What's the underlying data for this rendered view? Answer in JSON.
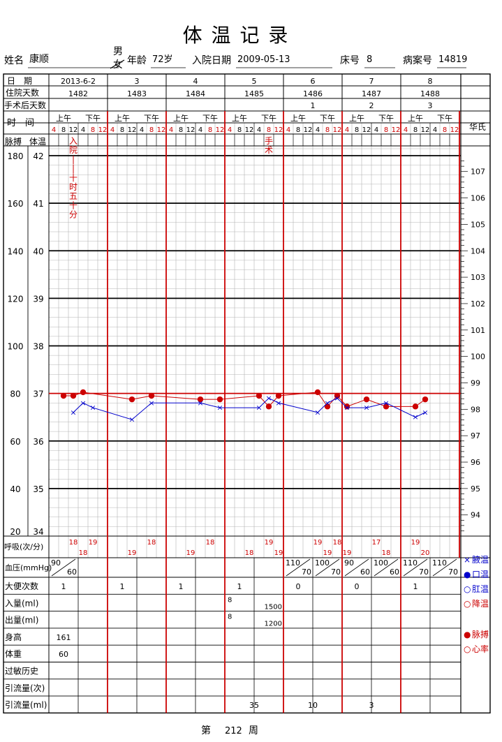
{
  "header": {
    "title": "体 温 记 录",
    "name_label": "姓名",
    "name": "康顺",
    "sex_male": "男",
    "sex_female": "女",
    "age_label": "年龄",
    "age": "72岁",
    "admit_label": "入院日期",
    "admit_date": "2009-05-13",
    "bed_label": "床号",
    "bed": "8",
    "case_label": "病案号",
    "case_no": "14819"
  },
  "labels": {
    "date": "日　期",
    "hosp_days": "住院天数",
    "post_op": "手术后天数",
    "time": "时　间",
    "am": "上午",
    "pm": "下午",
    "fahrenheit": "华氏",
    "pulse": "脉搏",
    "temp": "体温",
    "resp": "呼吸(次/分)",
    "bp": "血压(mmHg)",
    "stool": "大便次数",
    "intake": "入量(ml)",
    "output": "出量(ml)",
    "height": "身高",
    "weight": "体重",
    "allergy": "过敏历史",
    "drain_count": "引流量(次)",
    "drain_ml": "引流量(ml)",
    "footer_prefix": "第",
    "footer_week": "212",
    "footer_suffix": "周"
  },
  "legend": [
    {
      "symbol": "×",
      "label": "腋温",
      "color": "#0000cc"
    },
    {
      "symbol": "●",
      "label": "口温",
      "color": "#0000cc"
    },
    {
      "symbol": "○",
      "label": "肛温",
      "color": "#0000cc"
    },
    {
      "symbol": "○",
      "label": "降温",
      "color": "#cc0000"
    },
    {
      "symbol": "●",
      "label": "脉搏",
      "color": "#cc0000"
    },
    {
      "symbol": "○",
      "label": "心率",
      "color": "#cc0000"
    }
  ],
  "days": [
    {
      "date": "2013-6-2",
      "hosp": "1482",
      "postop": ""
    },
    {
      "date": "3",
      "hosp": "1483",
      "postop": ""
    },
    {
      "date": "4",
      "hosp": "1484",
      "postop": ""
    },
    {
      "date": "5",
      "hosp": "1485",
      "postop": ""
    },
    {
      "date": "6",
      "hosp": "1486",
      "postop": "1"
    },
    {
      "date": "7",
      "hosp": "1487",
      "postop": "2"
    },
    {
      "date": "8",
      "hosp": "1488",
      "postop": "3"
    }
  ],
  "hours": [
    "4",
    "8",
    "12",
    "4",
    "8",
    "12"
  ],
  "chart_data": {
    "type": "line",
    "pulse_axis": {
      "ticks": [
        180,
        160,
        140,
        120,
        100,
        80,
        60,
        40,
        20
      ],
      "range": [
        20,
        180
      ]
    },
    "temp_axis": {
      "ticks": [
        42,
        41,
        40,
        39,
        38,
        37,
        36,
        35,
        34
      ],
      "range": [
        34,
        42
      ]
    },
    "fahrenheit_ticks": [
      "107",
      "106",
      "105",
      "104",
      "103",
      "102",
      "101",
      "100",
      "99",
      "98",
      "97",
      "96",
      "95",
      "94"
    ],
    "fahrenheit_marks": [
      107,
      106,
      105,
      104,
      103,
      102,
      101,
      100,
      99,
      98,
      97,
      96,
      95,
      94
    ],
    "reference_line": {
      "temp": 37
    },
    "series": [
      {
        "symbol": "pulse",
        "color": "#cc0000",
        "points": [
          {
            "slot": 1,
            "value": 79
          },
          {
            "slot": 2,
            "value": 79
          },
          {
            "slot": 3,
            "value": 80.5
          },
          {
            "slot": 8,
            "value": 77.5
          },
          {
            "slot": 10,
            "value": 79
          },
          {
            "slot": 15,
            "value": 77.5
          },
          {
            "slot": 17,
            "value": 77.5
          },
          {
            "slot": 21,
            "value": 79
          },
          {
            "slot": 22,
            "value": 74.5
          },
          {
            "slot": 23,
            "value": 79
          },
          {
            "slot": 27,
            "value": 80.5
          },
          {
            "slot": 28,
            "value": 74.5
          },
          {
            "slot": 29,
            "value": 79
          },
          {
            "slot": 30,
            "value": 74.5
          },
          {
            "slot": 32,
            "value": 77.5
          },
          {
            "slot": 34,
            "value": 74.5
          },
          {
            "slot": 37,
            "value": 74.5
          },
          {
            "slot": 38,
            "value": 77.5
          }
        ]
      },
      {
        "symbol": "axillary",
        "color": "#0000cc",
        "points": [
          {
            "slot": 2,
            "value": 36.6
          },
          {
            "slot": 3,
            "value": 36.8
          },
          {
            "slot": 4,
            "value": 36.7
          },
          {
            "slot": 8,
            "value": 36.45
          },
          {
            "slot": 10,
            "value": 36.8
          },
          {
            "slot": 15,
            "value": 36.8
          },
          {
            "slot": 17,
            "value": 36.7
          },
          {
            "slot": 21,
            "value": 36.7
          },
          {
            "slot": 22,
            "value": 36.9
          },
          {
            "slot": 23,
            "value": 36.8
          },
          {
            "slot": 27,
            "value": 36.6
          },
          {
            "slot": 28,
            "value": 36.8
          },
          {
            "slot": 29,
            "value": 36.9
          },
          {
            "slot": 30,
            "value": 36.7
          },
          {
            "slot": 32,
            "value": 36.7
          },
          {
            "slot": 34,
            "value": 36.8
          },
          {
            "slot": 37,
            "value": 36.5
          },
          {
            "slot": 38,
            "value": 36.6
          }
        ]
      }
    ],
    "annotations": [
      {
        "slot": 2,
        "text": "入院|十时五十分",
        "chars": [
          "入",
          "院",
          "|",
          "|",
          "十",
          "时",
          "五",
          "十",
          "分"
        ]
      },
      {
        "slot": 22,
        "text": "手术",
        "chars": [
          "手",
          "术"
        ]
      }
    ]
  },
  "resp": [
    {
      "slot": 2,
      "value": "18",
      "pos": "up"
    },
    {
      "slot": 3,
      "value": "18",
      "pos": "down"
    },
    {
      "slot": 4,
      "value": "19",
      "pos": "up"
    },
    {
      "slot": 8,
      "value": "19",
      "pos": "down"
    },
    {
      "slot": 10,
      "value": "18",
      "pos": "up"
    },
    {
      "slot": 14,
      "value": "19",
      "pos": "down"
    },
    {
      "slot": 16,
      "value": "18",
      "pos": "up"
    },
    {
      "slot": 20,
      "value": "18",
      "pos": "down"
    },
    {
      "slot": 22,
      "value": "19",
      "pos": "up"
    },
    {
      "slot": 23,
      "value": "19",
      "pos": "down"
    },
    {
      "slot": 27,
      "value": "19",
      "pos": "up"
    },
    {
      "slot": 28,
      "value": "19",
      "pos": "down"
    },
    {
      "slot": 29,
      "value": "18",
      "pos": "up"
    },
    {
      "slot": 30,
      "value": "19",
      "pos": "down"
    },
    {
      "slot": 33,
      "value": "17",
      "pos": "up"
    },
    {
      "slot": 34,
      "value": "18",
      "pos": "down"
    },
    {
      "slot": 37,
      "value": "19",
      "pos": "up"
    },
    {
      "slot": 38,
      "value": "20",
      "pos": "down"
    }
  ],
  "bp": [
    {
      "half": 0,
      "sys": "90",
      "dia": "60"
    },
    {
      "half": 8,
      "sys": "110",
      "dia": "70"
    },
    {
      "half": 9,
      "sys": "100",
      "dia": "70"
    },
    {
      "half": 10,
      "sys": "90",
      "dia": "60"
    },
    {
      "half": 11,
      "sys": "100",
      "dia": "60"
    },
    {
      "half": 12,
      "sys": "110",
      "dia": "70"
    },
    {
      "half": 13,
      "sys": "110",
      "dia": "70"
    }
  ],
  "stool": [
    "1",
    "1",
    "1",
    "1",
    "0",
    "0",
    "1"
  ],
  "intake": {
    "day": 3,
    "top": "8",
    "bottom": "1500"
  },
  "output": {
    "day": 3,
    "top": "8",
    "bottom": "1200"
  },
  "height": "161",
  "weight": "60",
  "drain_ml": [
    "",
    "",
    "",
    "35",
    "10",
    "3",
    ""
  ]
}
